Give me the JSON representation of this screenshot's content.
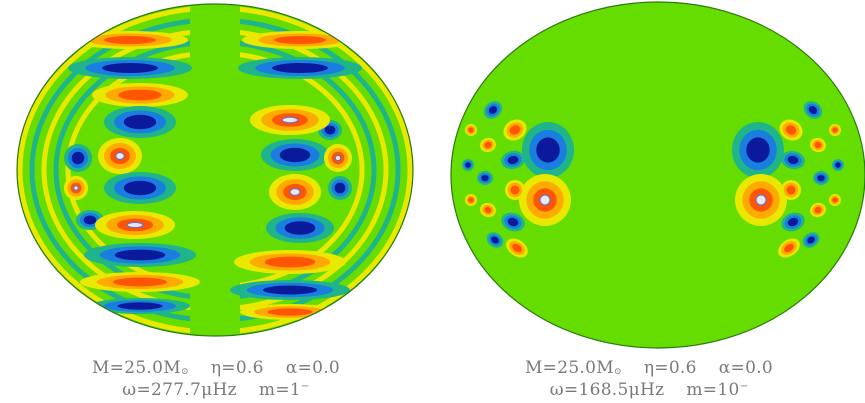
{
  "panels": [
    {
      "id": "left",
      "caption": {
        "mass": "M=25.0M",
        "mass_unit_symbol": "⊙",
        "eta": "η=0.6",
        "alpha": "α=0.0",
        "omega": "ω=277.7μHz",
        "m_label": "m=1",
        "m_sup": "−"
      }
    },
    {
      "id": "right",
      "caption": {
        "mass": "M=25.0M",
        "mass_unit_symbol": "⊙",
        "eta": "η=0.6",
        "alpha": "α=0.0",
        "omega": "ω=168.5μHz",
        "m_label": "m=10",
        "m_sup": "−"
      }
    }
  ],
  "colors": {
    "background_field": "#66dd00",
    "positive_strong": "#ff5500",
    "positive_mid": "#ffaa00",
    "positive_weak": "#e8e800",
    "negative_strong": "#0a1a9a",
    "negative_mid": "#1a7de0",
    "negative_weak": "#1fb48a",
    "peak": "#e8e8f0"
  }
}
